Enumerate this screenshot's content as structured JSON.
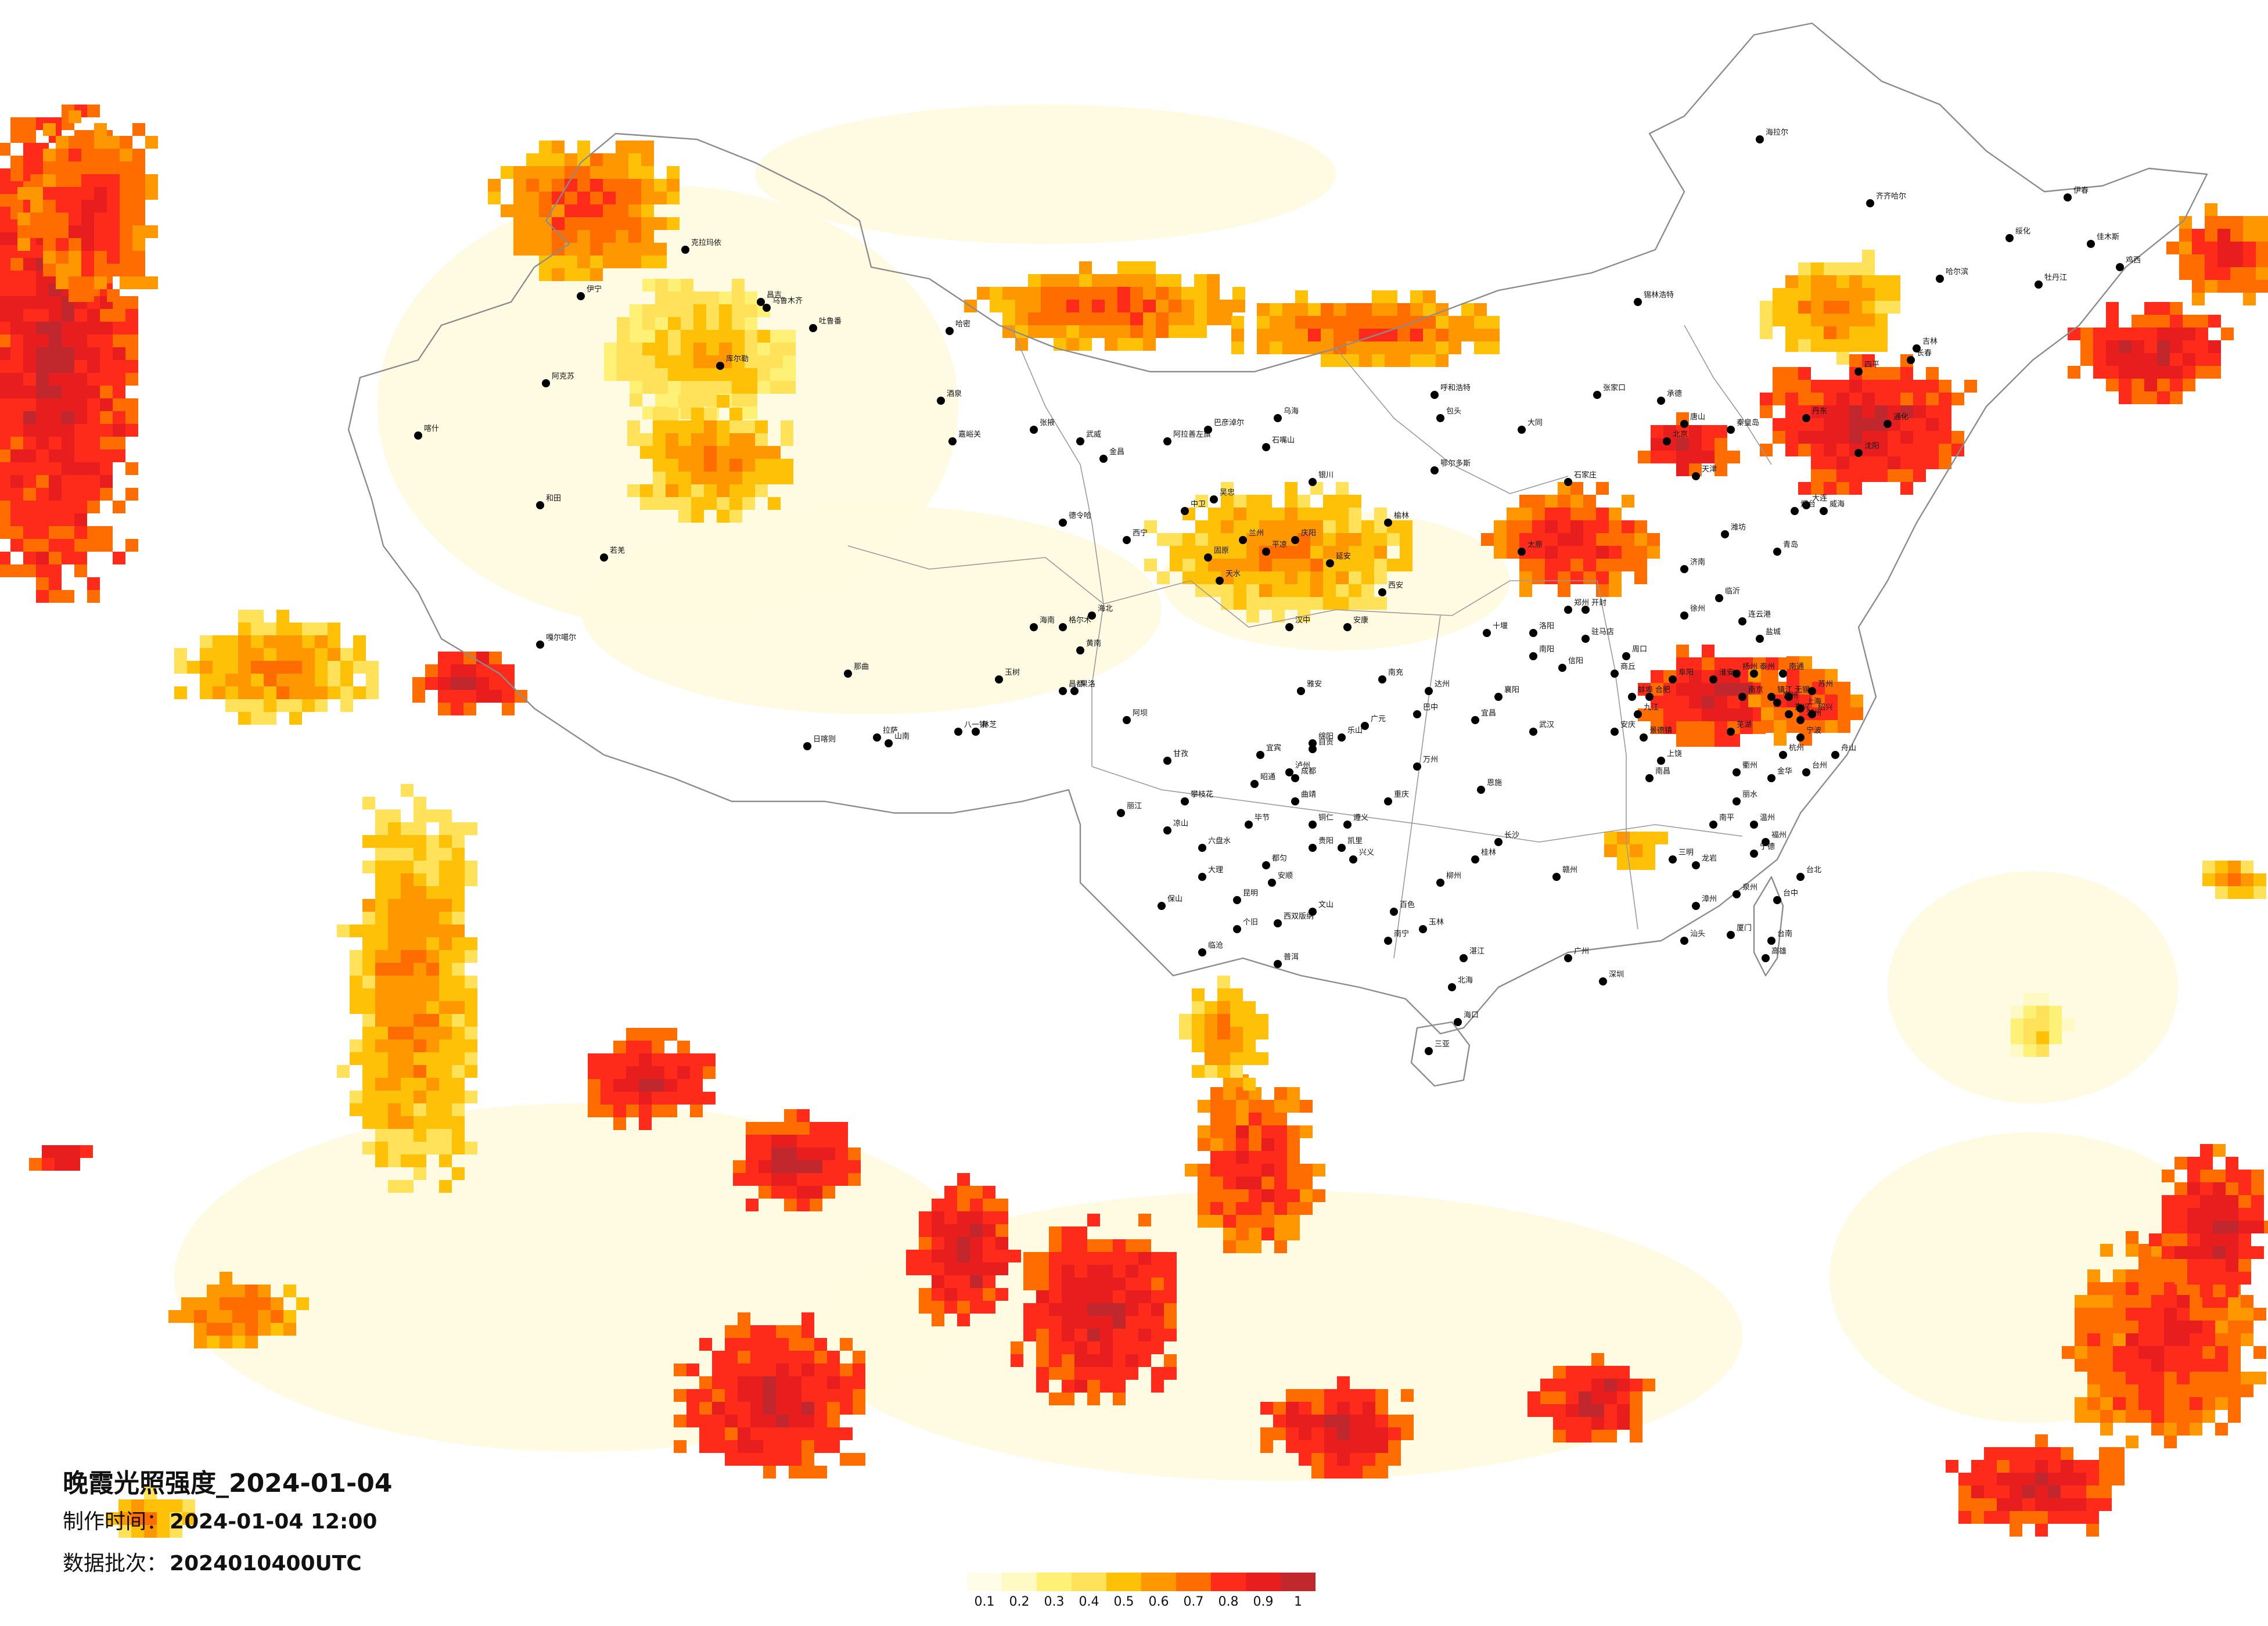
{
  "map": {
    "title": "晚霞光照强度_2024-01-04",
    "info": {
      "time_label": "制作时间：",
      "time_value": "2024-01-04 12:00",
      "batch_label": "数据批次：",
      "batch_value": "2024010400UTC"
    },
    "legend": {
      "colors": [
        "#fffde7",
        "#fff9c4",
        "#fff176",
        "#ffe15a",
        "#ffc107",
        "#ff9800",
        "#ff6d00",
        "#ff2b1a",
        "#e81e1e",
        "#c0282d"
      ],
      "ticks": [
        "0.1",
        "0.2",
        "0.3",
        "0.4",
        "0.5",
        "0.6",
        "0.7",
        "0.8",
        "0.9",
        "1"
      ]
    },
    "cities": [
      "克拉玛依",
      "伊宁",
      "昌吉",
      "乌鲁木齐",
      "吐鲁番",
      "库尔勒",
      "哈密",
      "阿克苏",
      "喀什",
      "和田",
      "若羌",
      "嘎尔噶尔",
      "日喀则",
      "拉萨",
      "山南",
      "林芝",
      "八一镇",
      "昌都",
      "那曲",
      "格尔木",
      "德令哈",
      "西宁",
      "兰州",
      "银川",
      "呼和浩特",
      "包头",
      "鄂尔多斯",
      "太原",
      "石家庄",
      "北京",
      "天津",
      "济南",
      "青岛",
      "郑州",
      "西安",
      "成都",
      "重庆",
      "贵阳",
      "昆明",
      "南宁",
      "广州",
      "深圳",
      "海口",
      "长沙",
      "武汉",
      "南昌",
      "合肥",
      "南京",
      "上海",
      "杭州",
      "福州",
      "台北",
      "台中",
      "高雄",
      "台南",
      "沈阳",
      "长春",
      "哈尔滨",
      "大连",
      "齐齐哈尔",
      "牡丹江",
      "佳木斯",
      "鸡西",
      "伊春",
      "绥化",
      "海拉尔",
      "锡林浩特",
      "张家口",
      "大同",
      "厦门",
      "汕头",
      "桂林",
      "柳州",
      "遵义",
      "绵阳",
      "宜昌",
      "襄阳",
      "洛阳",
      "开封",
      "徐州",
      "连云港",
      "临沂",
      "潍坊",
      "烟台",
      "威海",
      "唐山",
      "秦皇岛",
      "承德",
      "丹东",
      "通化",
      "吉林",
      "四平",
      "丽江",
      "大理",
      "保山",
      "临沧",
      "普洱",
      "西双版纳",
      "个旧",
      "文山",
      "百色",
      "玉林",
      "湛江",
      "北海",
      "三亚",
      "赣州",
      "九江",
      "景德镇",
      "安庆",
      "芜湖",
      "宁波",
      "温州",
      "金华",
      "衢州",
      "上饶",
      "丽水",
      "宁德",
      "泉州",
      "漳州",
      "龙岩",
      "三明",
      "南平",
      "延安",
      "榆林",
      "汉中",
      "安康",
      "天水",
      "平凉",
      "庆阳",
      "固原",
      "中卫",
      "吴忠",
      "石嘴山",
      "乌海",
      "巴彦淖尔",
      "阿拉善左旗",
      "嘉峪关",
      "张掖",
      "武威",
      "金昌",
      "酒泉",
      "玉树",
      "果洛",
      "海北",
      "海南",
      "黄南",
      "阿坝",
      "甘孜",
      "凉山",
      "攀枝花",
      "六盘水",
      "毕节",
      "铜仁",
      "安顺",
      "都匀",
      "凯里",
      "兴义",
      "曲靖",
      "昭通",
      "宜宾",
      "泸州",
      "自贡",
      "乐山",
      "雅安",
      "南充",
      "达州",
      "广元",
      "巴中",
      "万州",
      "恩施",
      "十堰",
      "南阳",
      "信阳",
      "驻马店",
      "周口",
      "商丘",
      "阜阳",
      "蚌埠",
      "淮安",
      "盐城",
      "南通",
      "苏州",
      "无锡",
      "常州",
      "扬州",
      "泰州",
      "镇江",
      "湖州",
      "嘉兴",
      "绍兴",
      "台州",
      "舟山"
    ]
  }
}
